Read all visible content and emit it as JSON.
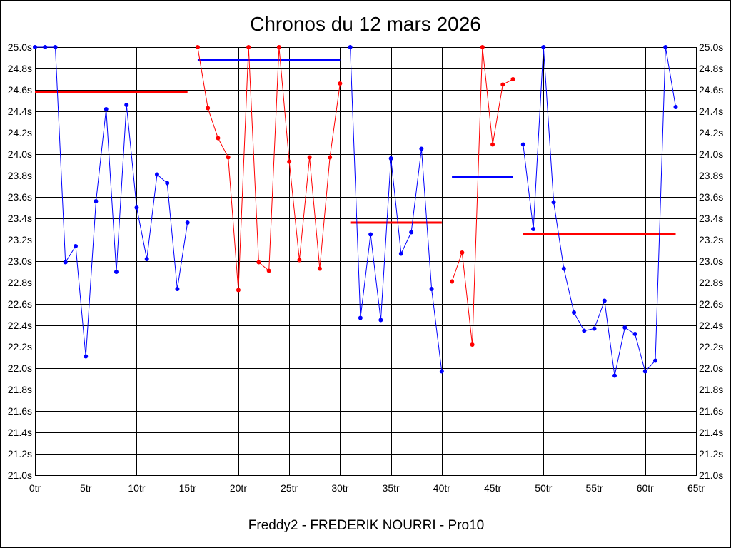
{
  "chart_data": {
    "type": "line",
    "title": "Chronos du 12 mars 2026",
    "xlabel": "Freddy2 - FREDERIK NOURRI - Pro10",
    "ylabel": "",
    "xlim": [
      0,
      65
    ],
    "ylim": [
      21.0,
      25.0
    ],
    "grid": true,
    "legend": "none",
    "x_ticks": [
      0,
      5,
      10,
      15,
      20,
      25,
      30,
      35,
      40,
      45,
      50,
      55,
      60,
      65
    ],
    "x_tick_labels": [
      "0tr",
      "5tr",
      "10tr",
      "15tr",
      "20tr",
      "25tr",
      "30tr",
      "35tr",
      "40tr",
      "45tr",
      "50tr",
      "55tr",
      "60tr",
      "65tr"
    ],
    "y_ticks": [
      21.0,
      21.2,
      21.4,
      21.6,
      21.8,
      22.0,
      22.2,
      22.4,
      22.6,
      22.8,
      23.0,
      23.2,
      23.4,
      23.6,
      23.8,
      24.0,
      24.2,
      24.4,
      24.6,
      24.8,
      25.0
    ],
    "y_tick_labels": [
      "21.0s",
      "21.2s",
      "21.4s",
      "21.6s",
      "21.8s",
      "22.0s",
      "22.2s",
      "22.4s",
      "22.6s",
      "22.8s",
      "23.0s",
      "23.2s",
      "23.4s",
      "23.6s",
      "23.8s",
      "24.0s",
      "24.2s",
      "24.4s",
      "24.6s",
      "24.8s",
      "25.0s"
    ],
    "y_tick_labels_both_sides": true,
    "colors": {
      "blue": "#0000ff",
      "red": "#ff0000",
      "grid": "#000000"
    },
    "series": [
      {
        "color": "#0000ff",
        "x": [
          0,
          1,
          2,
          3,
          4,
          5,
          6,
          7,
          8,
          9,
          10,
          11,
          12,
          13,
          14,
          15
        ],
        "y": [
          25.0,
          25.0,
          25.0,
          22.99,
          23.14,
          22.11,
          23.56,
          24.42,
          22.9,
          24.46,
          23.5,
          23.02,
          23.81,
          23.73,
          22.74,
          23.36
        ]
      },
      {
        "color": "#ff0000",
        "x": [
          16,
          17,
          18,
          19,
          20,
          21,
          22,
          23,
          24,
          25,
          26,
          27,
          28,
          29,
          30
        ],
        "y": [
          25.0,
          24.43,
          24.15,
          23.97,
          22.73,
          25.0,
          22.99,
          22.91,
          25.0,
          23.93,
          23.01,
          23.97,
          22.93,
          23.97,
          24.66
        ]
      },
      {
        "color": "#0000ff",
        "x": [
          31,
          32,
          33,
          34,
          35,
          36,
          37,
          38,
          39,
          40
        ],
        "y": [
          25.0,
          22.47,
          23.25,
          22.45,
          23.96,
          23.07,
          23.27,
          24.05,
          22.74,
          21.97
        ]
      },
      {
        "color": "#ff0000",
        "x": [
          41,
          42,
          43,
          44,
          45,
          46,
          47
        ],
        "y": [
          22.81,
          23.08,
          22.22,
          25.0,
          24.09,
          24.65,
          24.7
        ]
      },
      {
        "color": "#0000ff",
        "x": [
          48,
          49,
          50,
          51,
          52,
          53,
          54,
          55,
          56,
          57,
          58,
          59,
          60,
          61,
          62,
          63
        ],
        "y": [
          24.09,
          23.3,
          25.0,
          23.55,
          22.93,
          22.52,
          22.35,
          22.37,
          22.63,
          21.93,
          22.38,
          22.32,
          21.97,
          22.07,
          25.0,
          24.44
        ]
      }
    ],
    "average_lines": [
      {
        "color": "#ff0000",
        "x": [
          0,
          15
        ],
        "y": 24.58
      },
      {
        "color": "#0000ff",
        "x": [
          16,
          30
        ],
        "y": 24.88
      },
      {
        "color": "#ff0000",
        "x": [
          31,
          40
        ],
        "y": 23.36
      },
      {
        "color": "#0000ff",
        "x": [
          41,
          47
        ],
        "y": 23.79
      },
      {
        "color": "#ff0000",
        "x": [
          48,
          63
        ],
        "y": 23.25
      }
    ]
  }
}
